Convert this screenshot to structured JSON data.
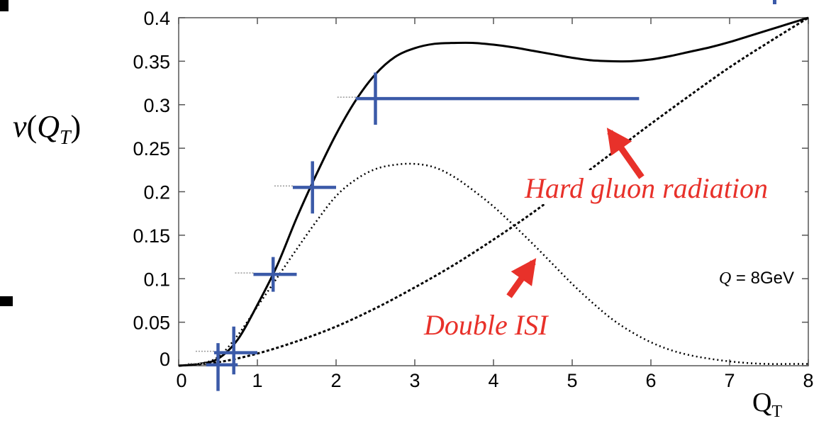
{
  "chart_data": {
    "type": "line",
    "ylabel": "ν(Q_T)",
    "xlabel": "Q_T",
    "xlim": [
      0,
      8
    ],
    "ylim": [
      0,
      0.4
    ],
    "x_ticks": [
      "0",
      "1",
      "2",
      "3",
      "4",
      "5",
      "6",
      "7",
      "8"
    ],
    "y_ticks": [
      "0",
      "0.05",
      "0.1",
      "0.15",
      "0.2",
      "0.25",
      "0.3",
      "0.35",
      "0.4"
    ],
    "grid": false,
    "series": [
      {
        "style": "solid",
        "x": [
          0,
          0.25,
          0.5,
          0.75,
          1,
          1.25,
          1.5,
          1.75,
          2,
          2.25,
          2.5,
          2.75,
          3,
          3.25,
          3.5,
          3.75,
          4,
          4.25,
          4.5,
          4.75,
          5,
          5.25,
          5.5,
          5.75,
          6,
          6.25,
          6.5,
          6.75,
          7,
          7.25,
          7.5,
          7.75,
          8
        ],
        "y": [
          0,
          0.002,
          0.008,
          0.03,
          0.07,
          0.115,
          0.17,
          0.22,
          0.266,
          0.305,
          0.335,
          0.355,
          0.365,
          0.37,
          0.371,
          0.371,
          0.369,
          0.366,
          0.362,
          0.358,
          0.354,
          0.351,
          0.35,
          0.35,
          0.352,
          0.356,
          0.361,
          0.366,
          0.372,
          0.379,
          0.386,
          0.393,
          0.4
        ]
      },
      {
        "style": "dotted",
        "x": [
          0,
          0.25,
          0.5,
          0.75,
          1,
          1.25,
          1.5,
          1.75,
          2,
          2.25,
          2.5,
          2.75,
          3,
          3.25,
          3.5,
          3.75,
          4,
          4.25,
          4.5,
          4.75,
          5,
          5.25,
          5.5,
          5.75,
          6,
          6.25,
          6.5,
          6.75,
          7,
          7.25,
          7.5,
          7.75,
          8
        ],
        "y": [
          0,
          0.002,
          0.01,
          0.035,
          0.068,
          0.101,
          0.134,
          0.166,
          0.195,
          0.214,
          0.226,
          0.231,
          0.232,
          0.228,
          0.217,
          0.201,
          0.183,
          0.162,
          0.14,
          0.117,
          0.094,
          0.073,
          0.054,
          0.039,
          0.027,
          0.018,
          0.012,
          0.008,
          0.005,
          0.003,
          0.002,
          0.002,
          0.002
        ]
      },
      {
        "style": "dashed",
        "x": [
          0,
          0.5,
          1,
          1.5,
          2,
          2.5,
          3,
          3.5,
          4,
          4.5,
          5,
          5.5,
          6,
          6.5,
          7,
          7.5,
          8
        ],
        "y": [
          0,
          0.004,
          0.014,
          0.028,
          0.045,
          0.066,
          0.09,
          0.116,
          0.145,
          0.176,
          0.21,
          0.244,
          0.278,
          0.311,
          0.343,
          0.372,
          0.4
        ]
      }
    ],
    "data_points": [
      {
        "x": 0.5,
        "y": 0.001,
        "xerr": [
          0.15,
          0.25
        ],
        "yerr": [
          0.03,
          0.025
        ]
      },
      {
        "x": 0.7,
        "y": 0.015,
        "xerr": [
          0.25,
          0.3
        ],
        "yerr": [
          0.025,
          0.03
        ]
      },
      {
        "x": 1.2,
        "y": 0.105,
        "xerr": [
          0.25,
          0.3
        ],
        "yerr": [
          0.02,
          0.02
        ]
      },
      {
        "x": 1.7,
        "y": 0.205,
        "xerr": [
          0.25,
          0.3
        ],
        "yerr": [
          0.03,
          0.03
        ]
      },
      {
        "x": 2.5,
        "y": 0.307,
        "xerr": [
          0.25,
          3.35
        ],
        "yerr": [
          0.03,
          0.03
        ]
      }
    ],
    "annotations": [
      {
        "text": "Hard gluon radiation",
        "color": "#e8312a"
      },
      {
        "text": "Double ISI",
        "color": "#e8312a"
      },
      {
        "text": "Q = 8GeV",
        "color": "#000000"
      }
    ],
    "colors": {
      "data": "#3b5aa8",
      "annotation": "#e8312a",
      "curve": "#000000"
    }
  }
}
